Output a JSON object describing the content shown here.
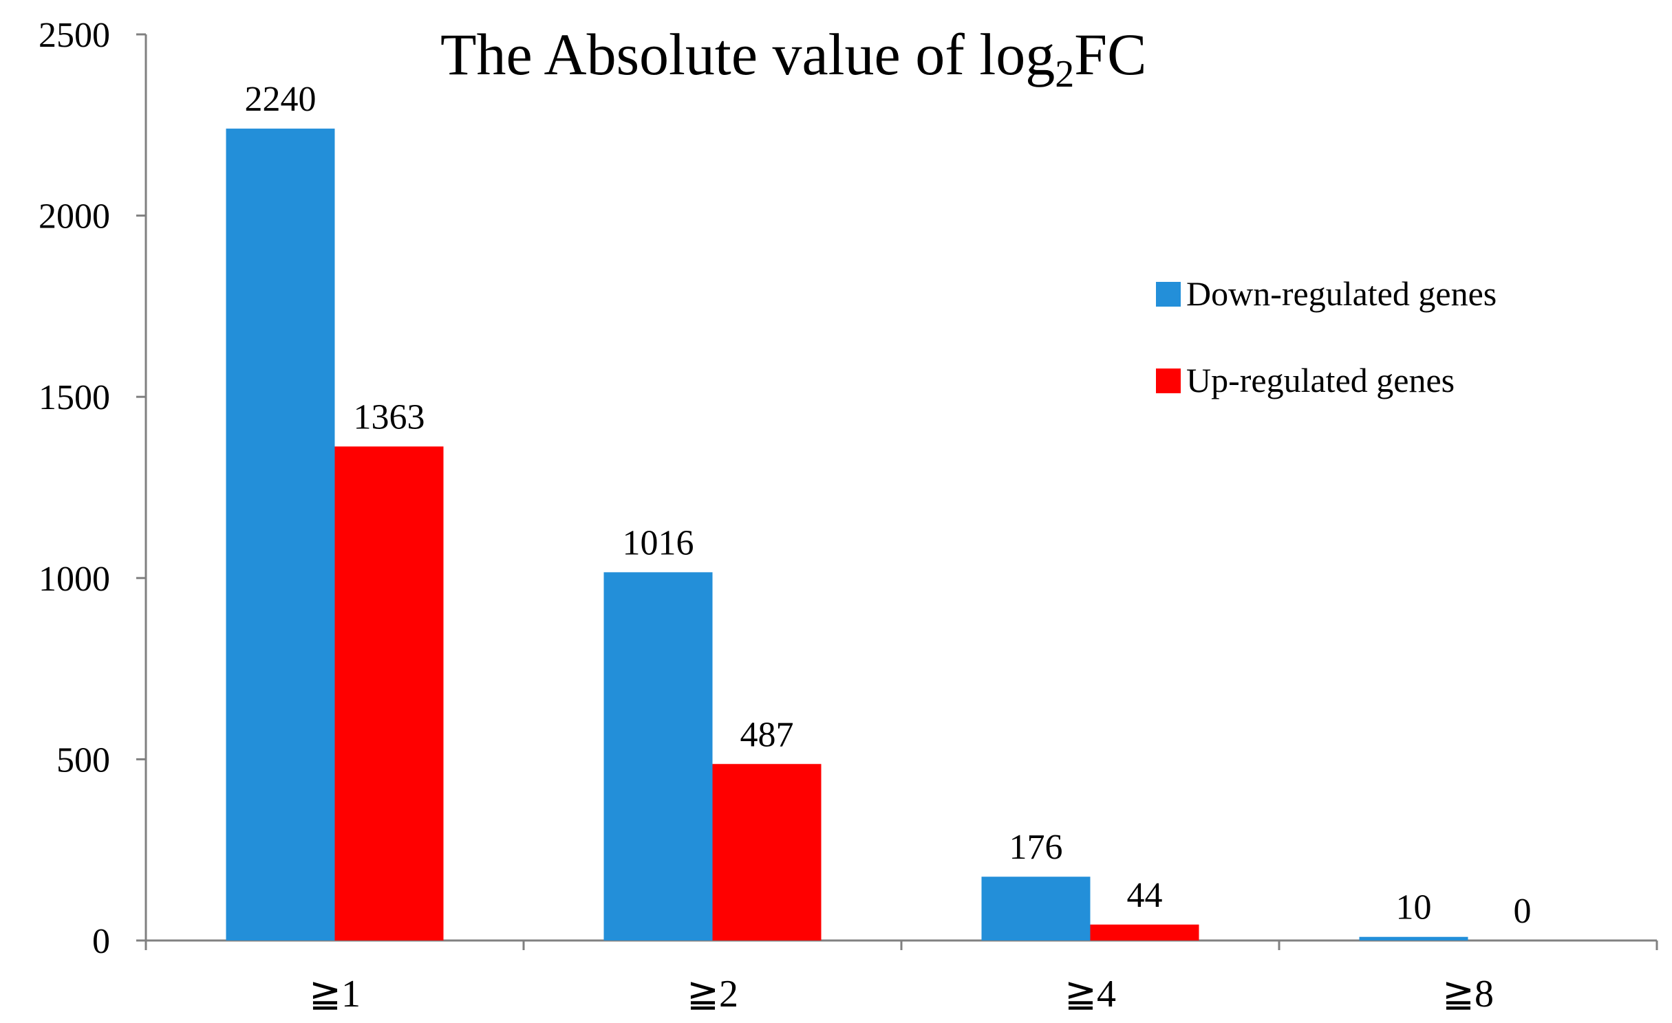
{
  "chart_data": {
    "type": "bar",
    "title_main": "The Absolute value of log",
    "title_sub": "2",
    "title_tail": "FC",
    "categories": [
      "≧1",
      "≧2",
      "≧4",
      "≧8"
    ],
    "series": [
      {
        "name": "Down-regulated genes",
        "color": "#238fd9",
        "values": [
          2240,
          1016,
          176,
          10
        ]
      },
      {
        "name": "Up-regulated genes",
        "color": "#ff0000",
        "values": [
          1363,
          487,
          44,
          0
        ]
      }
    ],
    "ylim": [
      0,
      2500
    ],
    "yticks": [
      0,
      500,
      1000,
      1500,
      2000,
      2500
    ],
    "xlabel": "",
    "ylabel": "",
    "grid": false,
    "legend_position": "right"
  }
}
